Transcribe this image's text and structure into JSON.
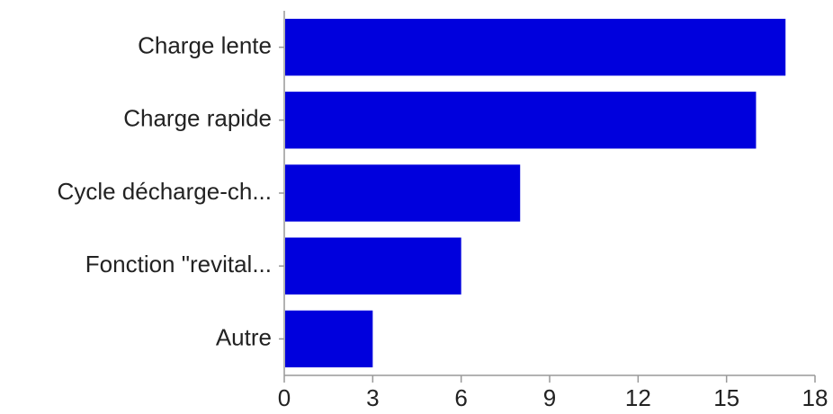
{
  "chart_data": {
    "type": "bar",
    "orientation": "horizontal",
    "categories": [
      "Charge lente",
      "Charge rapide",
      "Cycle décharge-ch...",
      "Fonction \"revital...",
      "Autre"
    ],
    "values": [
      17,
      16,
      8,
      6,
      3
    ],
    "xlim": [
      0,
      18
    ],
    "xticks": [
      "0",
      "3",
      "6",
      "9",
      "12",
      "15",
      "18"
    ],
    "title": "",
    "xlabel": "",
    "ylabel": "",
    "grid": false,
    "legend": "none",
    "colors": {
      "bar": "#0000dd",
      "axis": "#999999",
      "text": "#222222"
    }
  }
}
